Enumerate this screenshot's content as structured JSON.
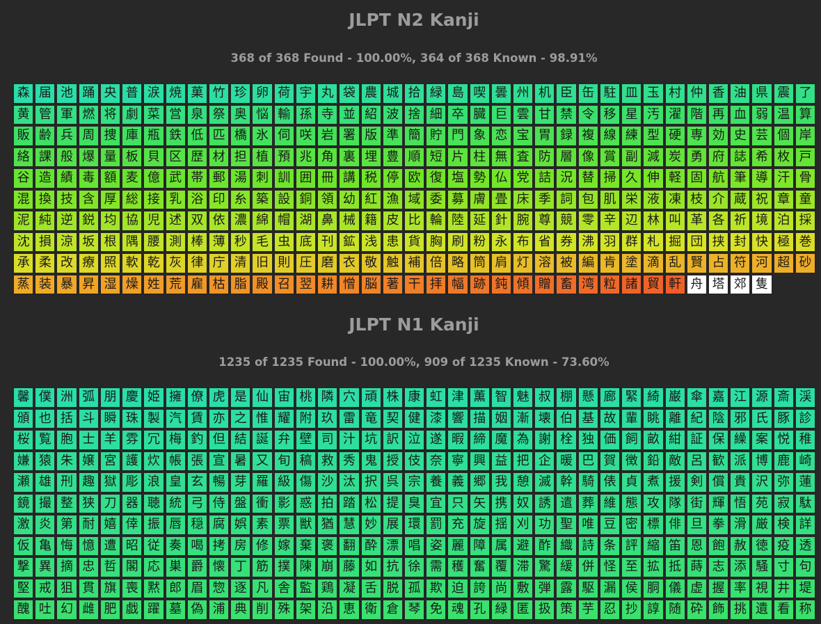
{
  "sections": [
    {
      "title": "JLPT N2 Kanji",
      "stats": "368 of 368 Found - 100.00%, 364 of 368 Known - 98.91%",
      "kanji": "森届池踊央普涙焼菓竹珍卵荷宇丸袋農城拾緑島喫曇州机臣缶駐皿玉村仲香油県震了黄管軍燃将劇菜営泉祭奥悩輸孫寺並紹波捨細卒臓巨雲甘禁令移星汚濯階再血弱温算販齢兵周捜庫瓶鉄低匹橋氷伺咲岩署版準簡貯門象恋宝胃録複線練型硬専効史芸個岸絡課般爆量板貝区歴材担植預兆角裏埋豊順短片柱無査防層像賞副減炭勇府誌希枚戸谷造績毒額麦億武帯郵湯刺訓囲冊講税停欧復塩勢仏党詰況替掃久伸軽固航筆導汗骨混換技含厚総接乳浴印糸築設銅領幼紅漁域委募膚畳床季詞包肌栄液凍枝介蔵祝章童泥純逆鋭均協児述双依濃綿帽湖鼻械籍皮比輪陸延針腕尊競零辛辺林叫革各祈境泊採沈損涼坂根隅腰測棒薄秒毛虫底刊鉱浅患貨胸刷粉永布省券沸羽群札掘団挟封快極巻承柔改療照軟乾灰律庁清旧則圧磨衣敬触補倍略筒肩灯溶被編肯塗滴乱賢占符河超砂蒸装暴昇湿燥姓荒雇枯脂殿召翌耕憎脳著干拝幅跡鈍傾贈畜湾粒諸貿軒舟塔郊隻"
    },
    {
      "title": "JLPT N1 Kanji",
      "stats": "1235 of 1235 Found - 100.00%, 909 of 1235 Known - 73.60%",
      "kanji": "馨僕洲弧朋慶姫擁僚虎是仙宙桃隣穴頑株康虹津薫智魅叔棚懸廊緊綺巌傘嘉江源斎渓頒也括斗瞬珠製汽賃亦之惟耀附玖雷竜契健漆響描姻漸壊伯基故輩眺離紀陰邪氏豚診桜覧胞士羊雰冗梅釣但結誕弁壁司汁坑訳泣遂暇締魔為謝栓独価飼畝紺証保繰案悦稚嫌猿朱嬢宮護炊帳張宣暑又旬稿救秀鬼授伎奈寧興益把企暖巴賀徴鉛敵呂歓派博鹿崎瀬雄刑趣獄彫浪皇玄暢芽羅級傷沙汰択呉宗養義郷我憩滅幹騎俵貞煮援剣償貴沢弥蓮鏡撮整狭刀器聴統弓侍盤衝影惑拍踏松提臭宜只矢携奴誘遣葬維態攻隊街輝悟苑寂駄激炎第耐嬉倖振唇穏腐娯素票獣猶慧妙展環罰充旋揺刈功聖唯豆密標俳旦拳滑厳検詳仮亀悔憶遭昭従奏喝拷房修嫁棄褒翻酔漂唱姿麗障属避酢織詩条評縮笛恩飽赦徳疫透撃異摘忠哲閣応巣爵懐丁筋撲陳崩藤如抗徐需穫奮覆滞驚緩併怪至拡抵蒔志添騒寸句堅戒狙貫旗喪黙郎眉惣逐凡舎監鶏凝舌脱孤欺迫誇尚敷弾露駆漏侯胴儀虚握率視井堤醜吐幻雌肥戯躍墓偽浦典削殊架沿恵衛倉琴免魂孔緑匿扱策芋忍抄諄随砕飾挑遺看称"
    }
  ]
}
